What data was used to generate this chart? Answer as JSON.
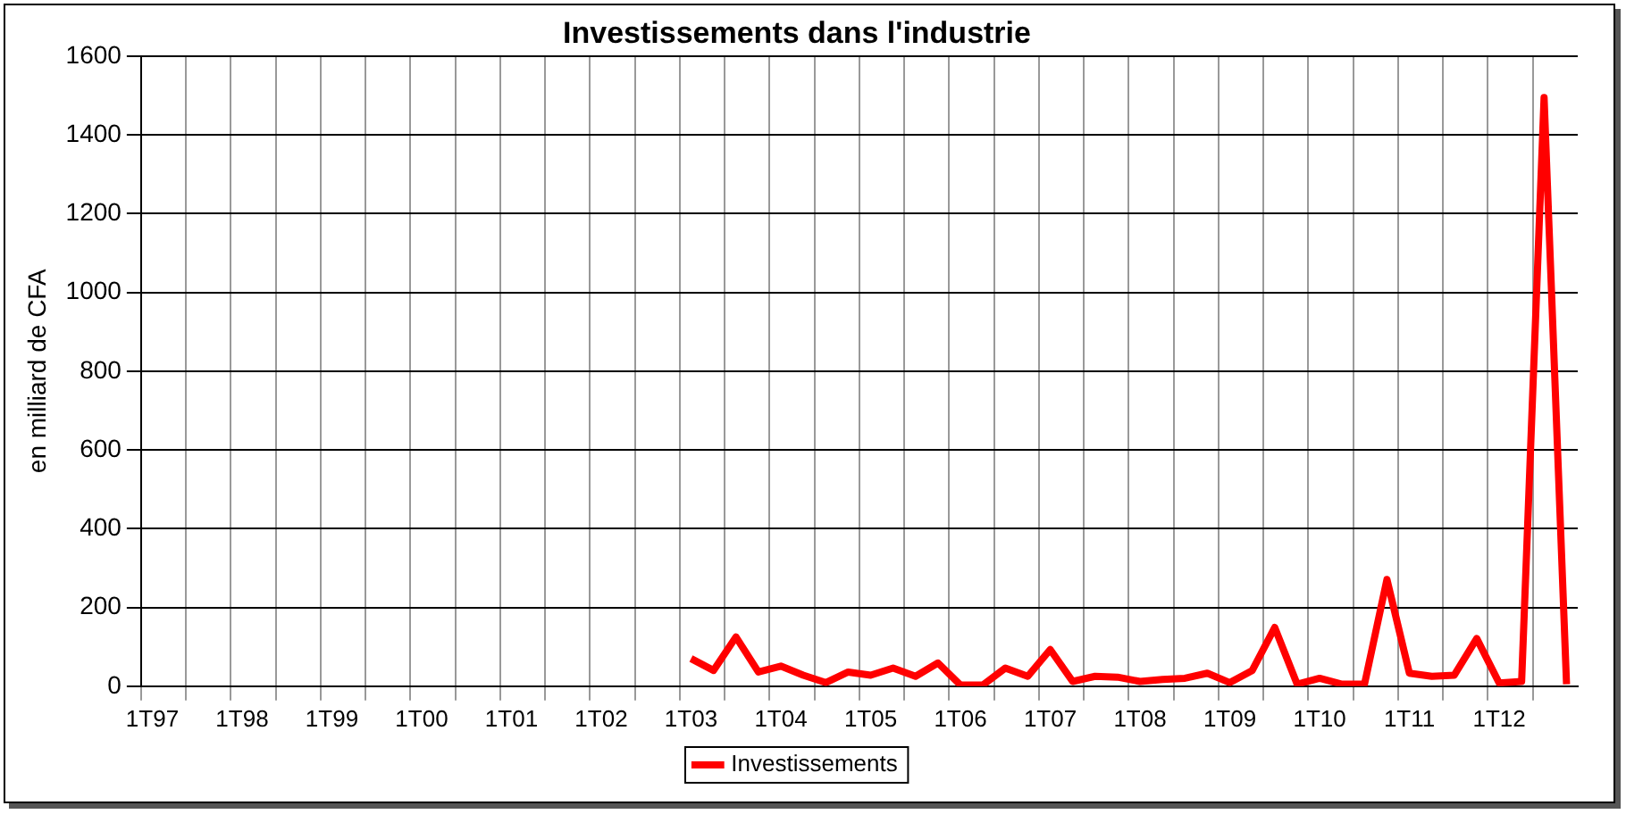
{
  "chart_data": {
    "type": "line",
    "title": "Investissements dans l'industrie",
    "ylabel": "en milliard de CFA",
    "categories": [
      "1T97",
      null,
      null,
      null,
      "1T98",
      null,
      null,
      null,
      "1T99",
      null,
      null,
      null,
      "1T00",
      null,
      null,
      null,
      "1T01",
      null,
      null,
      null,
      "1T02",
      null,
      null,
      null,
      "1T03",
      null,
      null,
      null,
      "1T04",
      null,
      null,
      null,
      "1T05",
      null,
      null,
      null,
      "1T06",
      null,
      null,
      null,
      "1T07",
      null,
      null,
      null,
      "1T08",
      null,
      null,
      null,
      "1T09",
      null,
      null,
      null,
      "1T10",
      null,
      null,
      null,
      "1T11",
      null,
      null,
      null,
      "1T12",
      null,
      null,
      null
    ],
    "series": [
      {
        "name": "Investissements",
        "color": "#ff0000",
        "values": [
          null,
          null,
          null,
          null,
          null,
          null,
          null,
          null,
          null,
          null,
          null,
          null,
          null,
          null,
          null,
          null,
          null,
          null,
          null,
          null,
          null,
          null,
          null,
          null,
          70,
          40,
          125,
          36,
          51,
          28,
          9,
          36,
          28,
          46,
          25,
          59,
          3,
          3,
          46,
          25,
          93,
          12,
          25,
          23,
          12,
          17,
          20,
          33,
          9,
          40,
          149,
          5,
          20,
          5,
          5,
          271,
          33,
          25,
          28,
          121,
          8,
          12,
          1495,
          5
        ]
      }
    ],
    "ylim": [
      0,
      1600
    ],
    "yticks": [
      0,
      200,
      400,
      600,
      800,
      1000,
      1200,
      1400,
      1600
    ],
    "grid": true,
    "legend": "bottom",
    "marker": "none",
    "line_style": "solid"
  }
}
